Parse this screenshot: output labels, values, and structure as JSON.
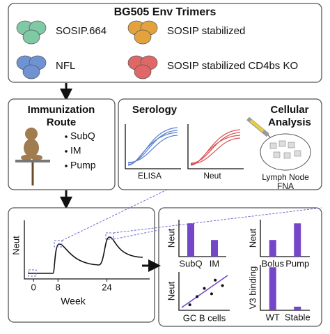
{
  "header": {
    "title": "BG505 Env Trimers"
  },
  "trimers": [
    {
      "label": "SOSIP.664",
      "color": "#7fc9a4"
    },
    {
      "label": "SOSIP stabilized",
      "color": "#e3a23c"
    },
    {
      "label": "NFL",
      "color": "#6f92d3"
    },
    {
      "label": "SOSIP stabilized CD4bs KO",
      "color": "#e06767"
    }
  ],
  "immunization": {
    "title_lines": [
      "Immunization",
      "Route"
    ],
    "items": [
      "SubQ",
      "IM",
      "Pump"
    ]
  },
  "serology": {
    "title": "Serology",
    "panels": [
      "ELISA",
      "Neut"
    ]
  },
  "cellular": {
    "title_lines": [
      "Cellular",
      "Analysis"
    ],
    "label_lines": [
      "Lymph Node",
      "FNA"
    ]
  },
  "timeline": {
    "y_label": "Neut",
    "x_label": "Week",
    "xlim": [
      -3,
      38
    ],
    "xticks": [
      0,
      8,
      24
    ]
  },
  "results": [
    {
      "type": "bar",
      "y_label": "Neut",
      "categories": [
        "SubQ",
        "IM"
      ],
      "values": [
        0.9,
        0.45
      ],
      "ylim": [
        0,
        1
      ],
      "color": "#7447c9"
    },
    {
      "type": "bar",
      "y_label": "Neut",
      "categories": [
        "Bolus",
        "Pump"
      ],
      "values": [
        0.45,
        0.9
      ],
      "ylim": [
        0,
        1
      ],
      "color": "#7447c9"
    },
    {
      "type": "scatter",
      "y_label": "Neut",
      "x_label": "GC B cells",
      "x": [
        1.5,
        2.5,
        3.5,
        4.5,
        5,
        6
      ],
      "y": [
        1,
        2.5,
        4,
        3,
        5.5,
        4.5
      ],
      "xlim": [
        0,
        7
      ],
      "ylim": [
        0,
        7
      ],
      "color": "#7447c9"
    },
    {
      "type": "bar",
      "y_label": "V3 binding",
      "categories": [
        "WT",
        "Stable"
      ],
      "values": [
        0.95,
        0.08
      ],
      "ylim": [
        0,
        1
      ],
      "color": "#7447c9"
    }
  ]
}
